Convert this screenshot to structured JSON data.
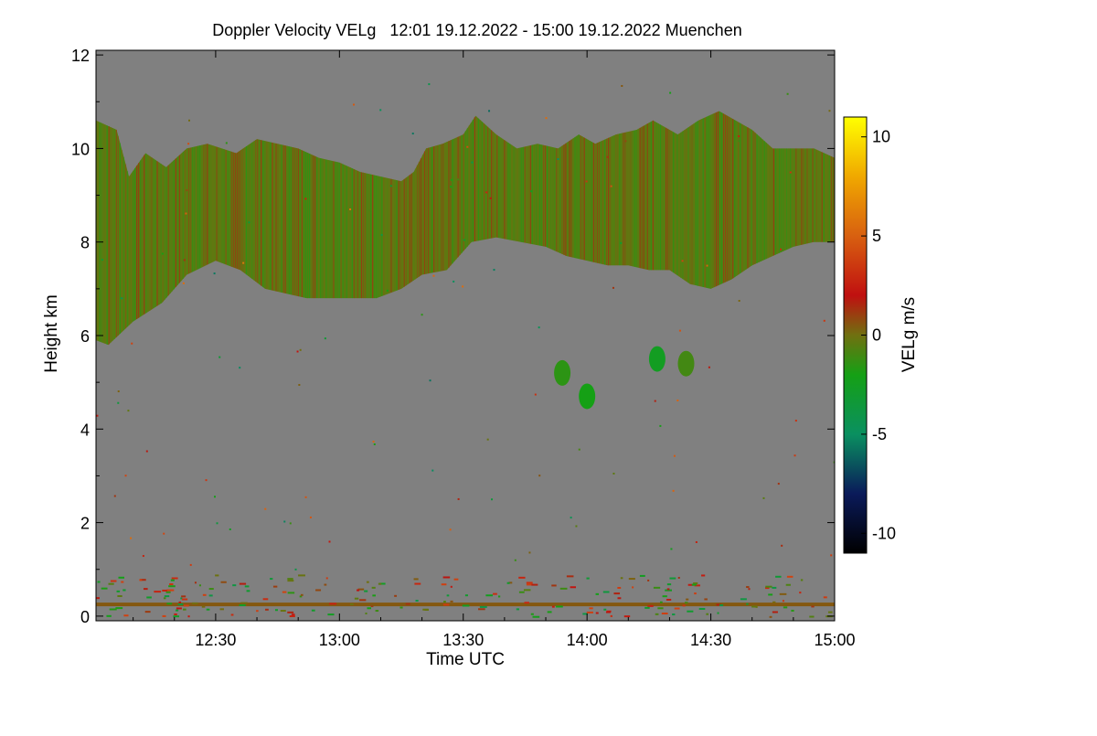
{
  "chart_data": {
    "type": "heatmap",
    "title": "Doppler Velocity VELg   12:01 19.12.2022 - 15:00 19.12.2022 Muenchen",
    "xlabel": "Time UTC",
    "ylabel": "Height km",
    "colorbar_label": "VELg m/s",
    "x_range_minutes_utc": [
      721,
      900
    ],
    "y_range_km": [
      -0.1,
      12.1
    ],
    "x_ticks": [
      {
        "label": "12:30",
        "minute": 750
      },
      {
        "label": "13:00",
        "minute": 780
      },
      {
        "label": "13:30",
        "minute": 810
      },
      {
        "label": "14:00",
        "minute": 840
      },
      {
        "label": "14:30",
        "minute": 870
      },
      {
        "label": "15:00",
        "minute": 900
      }
    ],
    "y_ticks": [
      {
        "label": "0",
        "value": 0
      },
      {
        "label": "2",
        "value": 2
      },
      {
        "label": "4",
        "value": 4
      },
      {
        "label": "6",
        "value": 6
      },
      {
        "label": "8",
        "value": 8
      },
      {
        "label": "10",
        "value": 10
      },
      {
        "label": "12",
        "value": 12
      }
    ],
    "colorbar": {
      "range": [
        -11,
        11
      ],
      "ticks": [
        {
          "label": "10",
          "value": 10
        },
        {
          "label": "5",
          "value": 5
        },
        {
          "label": "0",
          "value": 0
        },
        {
          "label": "-5",
          "value": -5
        },
        {
          "label": "-10",
          "value": -10
        }
      ],
      "stops": [
        {
          "value": -11,
          "color": "#000000"
        },
        {
          "value": -8,
          "color": "#0a1a5a"
        },
        {
          "value": -5,
          "color": "#0a9060"
        },
        {
          "value": -2,
          "color": "#15a015"
        },
        {
          "value": 0,
          "color": "#707010"
        },
        {
          "value": 2,
          "color": "#c01010"
        },
        {
          "value": 5,
          "color": "#d86010"
        },
        {
          "value": 8,
          "color": "#f0a800"
        },
        {
          "value": 11,
          "color": "#ffff00"
        }
      ]
    },
    "background_color": "#808080",
    "cloud_layer": {
      "upper_boundary_km": [
        [
          721,
          10.6
        ],
        [
          726,
          10.4
        ],
        [
          729,
          9.4
        ],
        [
          733,
          9.9
        ],
        [
          738,
          9.6
        ],
        [
          743,
          10.0
        ],
        [
          748,
          10.1
        ],
        [
          755,
          9.9
        ],
        [
          760,
          10.2
        ],
        [
          765,
          10.1
        ],
        [
          770,
          10.0
        ],
        [
          775,
          9.8
        ],
        [
          780,
          9.7
        ],
        [
          785,
          9.5
        ],
        [
          790,
          9.4
        ],
        [
          795,
          9.3
        ],
        [
          798,
          9.5
        ],
        [
          801,
          10.0
        ],
        [
          805,
          10.1
        ],
        [
          810,
          10.3
        ],
        [
          813,
          10.7
        ],
        [
          818,
          10.3
        ],
        [
          823,
          10.0
        ],
        [
          828,
          10.1
        ],
        [
          833,
          10.0
        ],
        [
          838,
          10.3
        ],
        [
          842,
          10.1
        ],
        [
          847,
          10.3
        ],
        [
          852,
          10.4
        ],
        [
          856,
          10.6
        ],
        [
          862,
          10.3
        ],
        [
          867,
          10.6
        ],
        [
          872,
          10.8
        ],
        [
          876,
          10.6
        ],
        [
          880,
          10.4
        ],
        [
          885,
          10.0
        ],
        [
          890,
          10.0
        ],
        [
          895,
          10.0
        ],
        [
          900,
          9.8
        ]
      ],
      "lower_boundary_km": [
        [
          721,
          5.9
        ],
        [
          724,
          5.8
        ],
        [
          730,
          6.3
        ],
        [
          737,
          6.7
        ],
        [
          743,
          7.3
        ],
        [
          750,
          7.6
        ],
        [
          756,
          7.4
        ],
        [
          762,
          7.0
        ],
        [
          767,
          6.9
        ],
        [
          772,
          6.8
        ],
        [
          777,
          6.8
        ],
        [
          783,
          6.8
        ],
        [
          789,
          6.8
        ],
        [
          795,
          7.0
        ],
        [
          800,
          7.3
        ],
        [
          806,
          7.4
        ],
        [
          812,
          8.0
        ],
        [
          818,
          8.1
        ],
        [
          824,
          8.0
        ],
        [
          830,
          7.9
        ],
        [
          835,
          7.7
        ],
        [
          840,
          7.6
        ],
        [
          845,
          7.5
        ],
        [
          850,
          7.5
        ],
        [
          855,
          7.4
        ],
        [
          860,
          7.4
        ],
        [
          865,
          7.1
        ],
        [
          870,
          7.0
        ],
        [
          875,
          7.2
        ],
        [
          880,
          7.5
        ],
        [
          885,
          7.7
        ],
        [
          890,
          7.9
        ],
        [
          895,
          8.0
        ],
        [
          900,
          8.0
        ]
      ],
      "velocity_m_s": -0.5
    },
    "cloud_patches": [
      {
        "x": 857,
        "y_km": 5.5,
        "velocity_m_s": -2.5
      },
      {
        "x": 864,
        "y_km": 5.4,
        "velocity_m_s": -1.0
      },
      {
        "x": 834,
        "y_km": 5.2,
        "velocity_m_s": -1.5
      },
      {
        "x": 840,
        "y_km": 4.7,
        "velocity_m_s": -2.0
      }
    ],
    "surface_layer": {
      "height_km": 0.25,
      "velocity_m_s": 0.5
    }
  }
}
